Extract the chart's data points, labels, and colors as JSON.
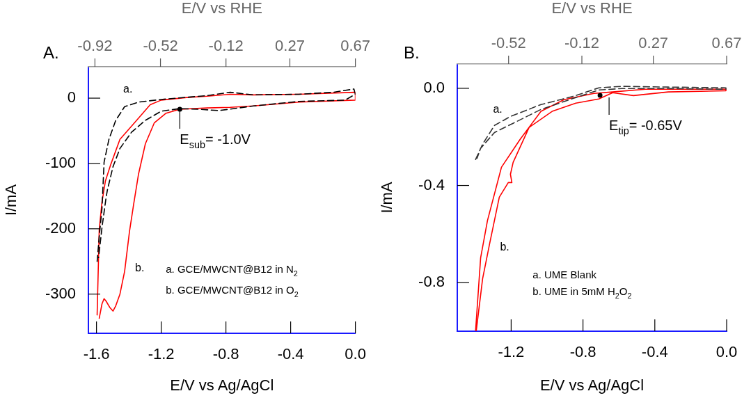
{
  "chart_data": [
    {
      "type": "line",
      "title": "A.",
      "xlabel": "E/V vs Ag/AgCl",
      "x2label": "E/V vs RHE",
      "ylabel": "I/mA",
      "marker": "none",
      "xlim": [
        -1.65,
        0
      ],
      "xticks": [
        -1.6,
        -1.2,
        -0.8,
        -0.4,
        {
          "value": 0,
          "label": "0.0"
        }
      ],
      "x2lim": [
        -0.96,
        0.67
      ],
      "x2ticks": [
        -0.92,
        -0.52,
        -0.12,
        0.27,
        0.67
      ],
      "ylim": [
        -360,
        48
      ],
      "yticks": [
        -300,
        -200,
        -100,
        0
      ],
      "series": [
        {
          "name": "a.",
          "color": "#000000",
          "line_style": "dashed",
          "x": [
            -1.596,
            -1.583,
            -1.566,
            -1.553,
            -1.523,
            -1.481,
            -1.426,
            -1.34,
            -1.2,
            -0.915,
            -0.774,
            -0.63,
            -0.349,
            -0.136,
            -0.009,
            0,
            -0.064,
            -0.349,
            -0.63,
            -0.843,
            -0.97,
            -1.085,
            -1.2,
            -1.298,
            -1.383,
            -1.455,
            -1.498,
            -1.532,
            -1.54,
            -1.566,
            -1.587
          ],
          "values": [
            -250,
            -212,
            -169,
            -98,
            -63,
            -34,
            -13,
            -6,
            -2,
            4,
            9,
            5,
            6,
            9,
            14,
            6,
            -3,
            -5,
            -12,
            -19,
            -17,
            -16,
            -20,
            -34,
            -52,
            -77,
            -105,
            -140,
            -151,
            -198,
            -244
          ]
        },
        {
          "name": "b.",
          "color": "#ff0000",
          "line_style": "solid",
          "x": [
            -1.596,
            -1.583,
            -1.566,
            -1.545,
            -1.511,
            -1.455,
            -1.37,
            -1.268,
            -1.2,
            -1.043,
            -0.915,
            -0.774,
            -0.63,
            -0.349,
            0,
            0,
            -0.349,
            -0.63,
            -0.774,
            -0.915,
            -1.085,
            -1.17,
            -1.243,
            -1.298,
            -1.34,
            -1.37,
            -1.396,
            -1.426,
            -1.455,
            -1.481,
            -1.498,
            -1.519,
            -1.54,
            -1.553,
            -1.566,
            -1.583
          ],
          "values": [
            -332,
            -201,
            -159,
            -127,
            -101,
            -63,
            -39,
            -10,
            -3,
            1,
            3,
            6,
            5,
            6,
            9,
            -3,
            -6,
            -12,
            -14,
            -15,
            -17,
            -23,
            -38,
            -70,
            -116,
            -162,
            -204,
            -265,
            -300,
            -318,
            -326,
            -320,
            -311,
            -307,
            -315,
            -337
          ]
        }
      ],
      "annotations": [
        {
          "text": "E$_{sub}$= -1.0V",
          "x": -1.085,
          "y": -17
        },
        "a. GCE/MWCNT@B12 in N$_{2}$",
        "b. GCE/MWCNT@B12 in O$_{2}$"
      ]
    },
    {
      "type": "line",
      "title": "B.",
      "xlabel": "E/V vs Ag/AgCl",
      "x2label": "E/V vs RHE",
      "ylabel": "I/mA",
      "marker": "none",
      "xlim": [
        -1.5,
        0
      ],
      "xticks": [
        -1.2,
        -0.8,
        -0.4,
        {
          "value": 0,
          "label": "0.0"
        }
      ],
      "x2lim": [
        -0.8,
        0.67
      ],
      "x2ticks": [
        -0.52,
        -0.12,
        0.27,
        0.67
      ],
      "ylim": [
        -1.0,
        0.1
      ],
      "yticks": [
        -0.8,
        -0.4,
        {
          "value": 0,
          "label": "0.0"
        }
      ],
      "series": [
        {
          "name": "a.",
          "color": "#333333",
          "line_style": "dashed",
          "x": [
            -1.398,
            -1.359,
            -1.293,
            -1.204,
            -1.034,
            -0.84,
            -0.712,
            -0.585,
            -0.325,
            -0.004,
            -0.004,
            -0.325,
            -0.585,
            -0.712,
            -0.84,
            -1.034,
            -1.189,
            -1.293,
            -1.37,
            -1.39
          ],
          "values": [
            -0.293,
            -0.23,
            -0.153,
            -0.116,
            -0.067,
            -0.03,
            0.002,
            0.008,
            0.005,
            0.002,
            -0.004,
            -0.001,
            -0.001,
            -0.007,
            -0.038,
            -0.087,
            -0.144,
            -0.182,
            -0.247,
            -0.288
          ]
        },
        {
          "name": "b.",
          "color": "#ff0000",
          "line_style": "solid",
          "x": [
            -1.398,
            -1.37,
            -1.332,
            -1.254,
            -1.15,
            -1.034,
            -0.906,
            -0.739,
            -0.635,
            -0.453,
            -0.004,
            -0.004,
            -0.325,
            -0.519,
            -0.635,
            -0.712,
            -0.84,
            -0.972,
            -1.1,
            -1.189,
            -1.204,
            -1.196,
            -1.216,
            -1.266,
            -1.32,
            -1.359,
            -1.394
          ],
          "values": [
            -0.997,
            -0.698,
            -0.545,
            -0.325,
            -0.21,
            -0.095,
            -0.047,
            -0.021,
            -0.015,
            -0.004,
            -0.004,
            -0.01,
            -0.015,
            -0.03,
            -0.018,
            -0.044,
            -0.061,
            -0.095,
            -0.161,
            -0.305,
            -0.354,
            -0.388,
            -0.388,
            -0.448,
            -0.64,
            -0.784,
            -0.997
          ]
        }
      ],
      "annotations": [
        {
          "text": "E$_{tip}$= -0.65V",
          "x": -0.705,
          "y": -0.029
        },
        "a. UME Blank",
        "b. UME in 5mM H$_{2}$O$_{2}$"
      ]
    }
  ]
}
